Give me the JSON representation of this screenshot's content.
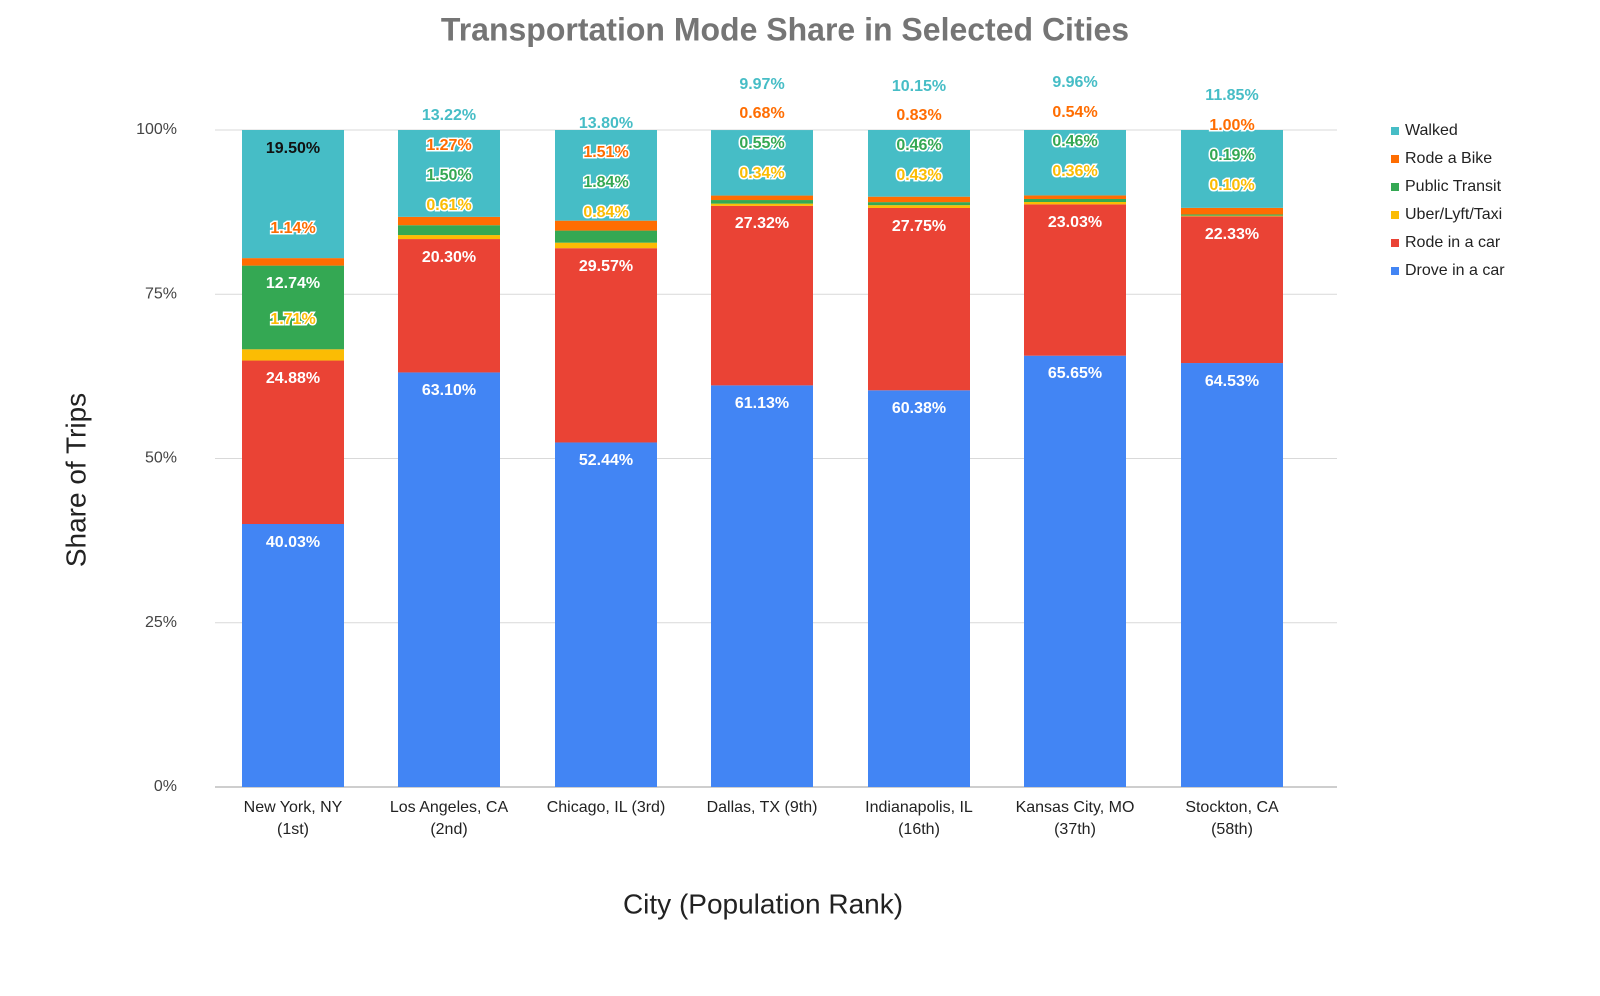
{
  "chart_data": {
    "type": "bar",
    "stacked": true,
    "title": "Transportation Mode Share in Selected Cities",
    "xlabel": "City (Population Rank)",
    "ylabel": "Share of Trips",
    "ylim": [
      0,
      100
    ],
    "yticks": [
      "0%",
      "25%",
      "50%",
      "75%",
      "100%"
    ],
    "grid": true,
    "legend_position": "right",
    "categories": [
      [
        "New York, NY",
        "(1st)"
      ],
      [
        "Los Angeles, CA",
        "(2nd)"
      ],
      [
        "Chicago, IL (3rd)",
        ""
      ],
      [
        "Dallas, TX (9th)",
        ""
      ],
      [
        "Indianapolis, IL",
        "(16th)"
      ],
      [
        "Kansas City, MO",
        "(37th)"
      ],
      [
        "Stockton, CA",
        "(58th)"
      ]
    ],
    "series": [
      {
        "name": "Drove in a car",
        "color": "#4285f4",
        "values": [
          40.03,
          63.1,
          52.44,
          61.13,
          60.38,
          65.65,
          64.53
        ]
      },
      {
        "name": "Rode in a car",
        "color": "#ea4335",
        "values": [
          24.88,
          20.3,
          29.57,
          27.32,
          27.75,
          23.03,
          22.33
        ]
      },
      {
        "name": "Uber/Lyft/Taxi",
        "color": "#fbbc04",
        "values": [
          1.71,
          0.61,
          0.84,
          0.34,
          0.43,
          0.36,
          0.1
        ]
      },
      {
        "name": "Public Transit",
        "color": "#34a853",
        "values": [
          12.74,
          1.5,
          1.84,
          0.55,
          0.46,
          0.46,
          0.19
        ]
      },
      {
        "name": "Rode a Bike",
        "color": "#ff6d01",
        "values": [
          1.14,
          1.27,
          1.51,
          0.68,
          0.83,
          0.54,
          1.0
        ]
      },
      {
        "name": "Walked",
        "color": "#46bdc6",
        "values": [
          19.5,
          13.22,
          13.8,
          9.97,
          10.15,
          9.96,
          11.85
        ]
      }
    ]
  }
}
